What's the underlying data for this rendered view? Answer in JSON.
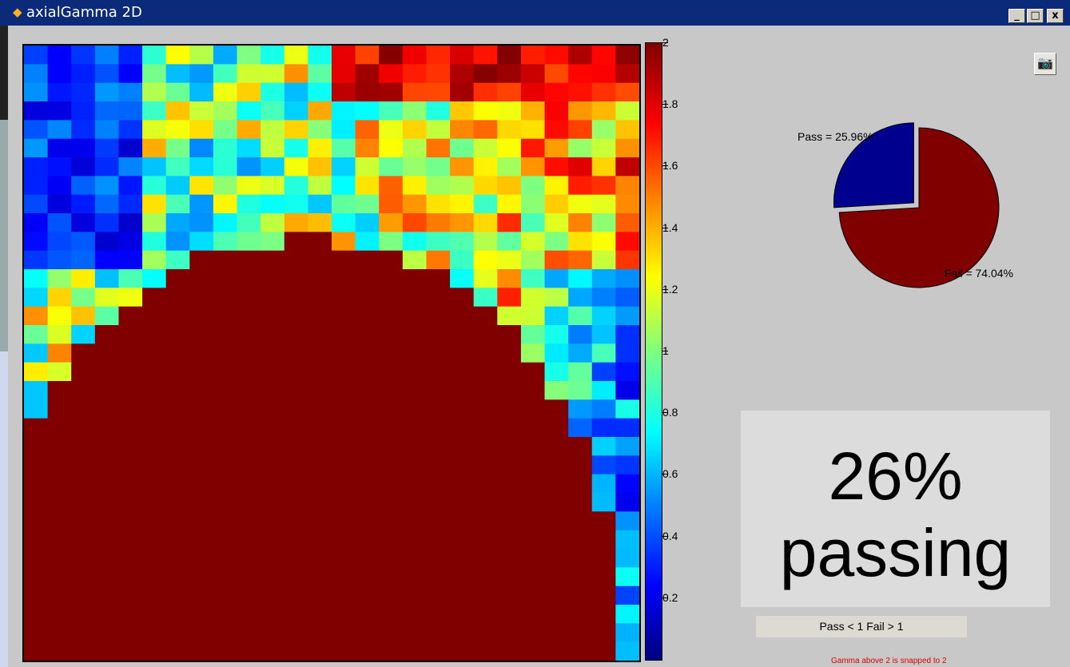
{
  "window": {
    "title": "axialGamma 2D",
    "buttons": [
      "_",
      "□",
      "x"
    ]
  },
  "toolbar": {
    "camera_icon": "camera-icon"
  },
  "chart_data": [
    {
      "type": "heatmap",
      "rows": 33,
      "cols": 26,
      "zlim": [
        0,
        2
      ],
      "colormap": "jet",
      "colorbar": {
        "ticks": [
          0.2,
          0.4,
          0.6,
          0.8,
          1,
          1.2,
          1.4,
          1.6,
          1.8,
          2
        ],
        "labels": [
          "0.2",
          "0.4",
          "0.6",
          "0.8",
          "1",
          "1.2",
          "1.4",
          "1.6",
          "1.8",
          "2"
        ]
      }
    },
    {
      "type": "pie",
      "slices": [
        {
          "label": "Pass = 25.96%",
          "value": 25.96,
          "color": "#00008f"
        },
        {
          "label": "Fail = 74.04%",
          "value": 74.04,
          "color": "#800000"
        }
      ]
    }
  ],
  "summary": {
    "line1": "26%",
    "line2": "passing"
  },
  "legend": {
    "text": "Pass < 1   Fail > 1"
  },
  "note": {
    "text": "Gamma above 2 is snapped to 2"
  }
}
